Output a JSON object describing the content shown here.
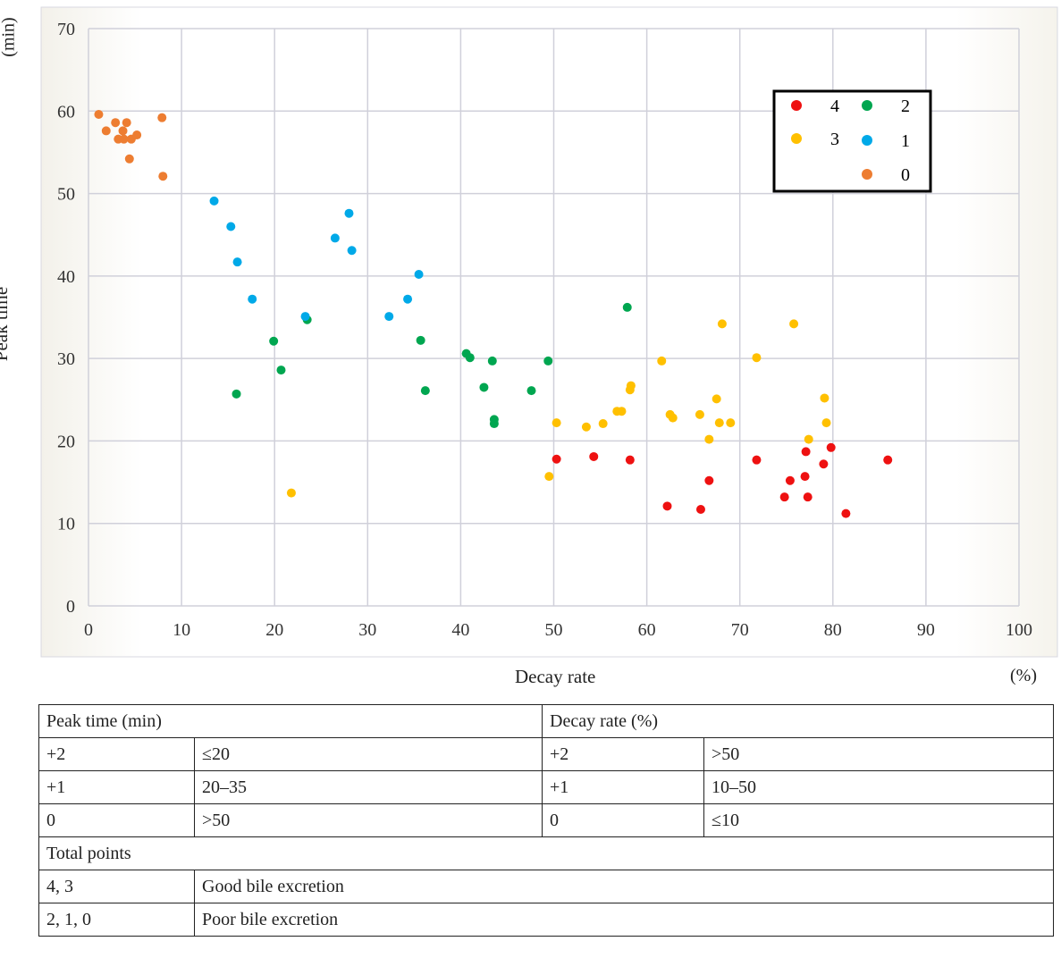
{
  "chart_data": {
    "type": "scatter",
    "xlabel": "Decay rate",
    "xunit": "(%)",
    "ylabel": "Peak time",
    "yunit": "(min)",
    "xlim": [
      0,
      100
    ],
    "ylim": [
      0,
      70
    ],
    "xticks": [
      0,
      10,
      20,
      30,
      40,
      50,
      60,
      70,
      80,
      90,
      100
    ],
    "yticks": [
      0,
      10,
      20,
      30,
      40,
      50,
      60,
      70
    ],
    "grid": true,
    "legend_position": "top-right",
    "series": [
      {
        "name": "4",
        "color": "#ee1111",
        "points": [
          [
            50.3,
            17.8
          ],
          [
            54.3,
            18.1
          ],
          [
            58.2,
            17.7
          ],
          [
            62.2,
            12.1
          ],
          [
            65.8,
            11.7
          ],
          [
            66.7,
            15.2
          ],
          [
            71.8,
            17.7
          ],
          [
            74.8,
            13.2
          ],
          [
            75.4,
            15.2
          ],
          [
            77.0,
            15.7
          ],
          [
            77.3,
            13.2
          ],
          [
            77.1,
            18.7
          ],
          [
            79.0,
            17.2
          ],
          [
            79.8,
            19.2
          ],
          [
            81.4,
            11.2
          ],
          [
            85.9,
            17.7
          ]
        ]
      },
      {
        "name": "3",
        "color": "#ffc000",
        "points": [
          [
            21.8,
            13.7
          ],
          [
            49.5,
            15.7
          ],
          [
            50.3,
            22.2
          ],
          [
            53.5,
            21.7
          ],
          [
            55.3,
            22.1
          ],
          [
            56.8,
            23.6
          ],
          [
            57.3,
            23.6
          ],
          [
            58.2,
            26.2
          ],
          [
            58.3,
            26.7
          ],
          [
            61.6,
            29.7
          ],
          [
            62.5,
            23.2
          ],
          [
            62.8,
            22.8
          ],
          [
            65.7,
            23.2
          ],
          [
            66.7,
            20.2
          ],
          [
            67.5,
            25.1
          ],
          [
            67.8,
            22.2
          ],
          [
            68.1,
            34.2
          ],
          [
            69.0,
            22.2
          ],
          [
            71.8,
            30.1
          ],
          [
            75.8,
            34.2
          ],
          [
            77.4,
            20.2
          ],
          [
            79.1,
            25.2
          ],
          [
            79.3,
            22.2
          ]
        ]
      },
      {
        "name": "2",
        "color": "#00a650",
        "points": [
          [
            15.9,
            25.7
          ],
          [
            19.9,
            32.1
          ],
          [
            20.7,
            28.6
          ],
          [
            23.5,
            34.7
          ],
          [
            35.7,
            32.2
          ],
          [
            36.2,
            26.1
          ],
          [
            40.6,
            30.6
          ],
          [
            41.0,
            30.1
          ],
          [
            43.4,
            29.7
          ],
          [
            42.5,
            26.5
          ],
          [
            43.6,
            22.6
          ],
          [
            43.6,
            22.1
          ],
          [
            47.6,
            26.1
          ],
          [
            49.4,
            29.7
          ],
          [
            57.9,
            36.2
          ]
        ]
      },
      {
        "name": "1",
        "color": "#00a9e8",
        "points": [
          [
            13.5,
            49.1
          ],
          [
            15.3,
            46.0
          ],
          [
            16.0,
            41.7
          ],
          [
            17.6,
            37.2
          ],
          [
            23.3,
            35.1
          ],
          [
            26.5,
            44.6
          ],
          [
            28.0,
            47.6
          ],
          [
            28.3,
            43.1
          ],
          [
            32.3,
            35.1
          ],
          [
            34.3,
            37.2
          ],
          [
            35.5,
            40.2
          ]
        ]
      },
      {
        "name": "0",
        "color": "#ed7d31",
        "points": [
          [
            1.1,
            59.6
          ],
          [
            1.9,
            57.6
          ],
          [
            2.9,
            58.6
          ],
          [
            3.2,
            56.6
          ],
          [
            3.7,
            57.6
          ],
          [
            3.8,
            56.6
          ],
          [
            4.1,
            58.6
          ],
          [
            4.6,
            56.6
          ],
          [
            5.2,
            57.1
          ],
          [
            4.4,
            54.2
          ],
          [
            7.9,
            59.2
          ],
          [
            8.0,
            52.1
          ]
        ]
      }
    ]
  },
  "table": {
    "peak_header": "Peak time (min)",
    "decay_header": "Decay rate (%)",
    "rows": [
      [
        "+2",
        "≤20",
        "+2",
        ">50"
      ],
      [
        "+1",
        "20–35",
        "+1",
        "10–50"
      ],
      [
        "0",
        ">50",
        "0",
        "≤10"
      ]
    ],
    "total_header": "Total points",
    "totals": [
      [
        "4, 3",
        "Good bile excretion"
      ],
      [
        "2, 1, 0",
        "Poor bile excretion"
      ]
    ]
  }
}
